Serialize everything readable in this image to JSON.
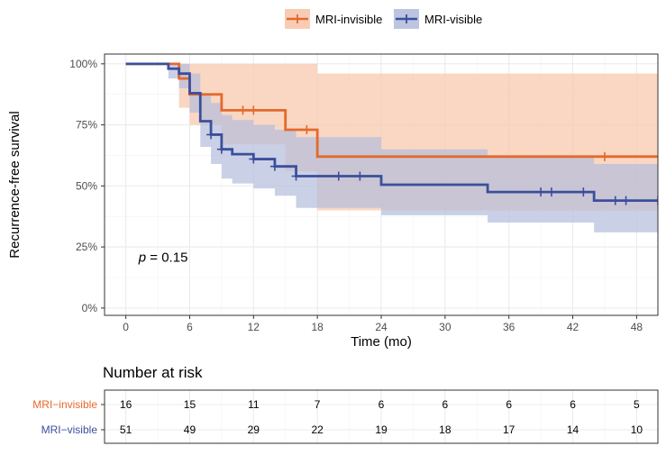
{
  "chart_data": {
    "type": "line",
    "subtype": "kaplan-meier",
    "xlabel": "Time (mo)",
    "ylabel": "Recurrence-free survival",
    "xlim": [
      -2,
      50
    ],
    "ylim": [
      -0.03,
      1.04
    ],
    "x_ticks": [
      0,
      6,
      12,
      18,
      24,
      30,
      36,
      42,
      48
    ],
    "y_ticks": [
      0,
      0.25,
      0.5,
      0.75,
      1.0
    ],
    "y_tick_labels": [
      "0%",
      "25%",
      "50%",
      "75%",
      "100%"
    ],
    "annotation": {
      "prefix": "p",
      "text": " = 0.15",
      "x": 1.2,
      "y": 0.19
    },
    "legend": {
      "position": "top",
      "items": [
        "MRI-invisible",
        "MRI-visible"
      ]
    },
    "series": [
      {
        "name": "MRI-invisible",
        "color": "#E4692B",
        "fill": "#F7C7AC",
        "steps": [
          [
            0,
            1.0
          ],
          [
            5,
            0.94
          ],
          [
            6,
            0.875
          ],
          [
            9,
            0.81
          ],
          [
            15,
            0.73
          ],
          [
            18,
            0.62
          ],
          [
            50,
            0.62
          ]
        ],
        "ci_steps": [
          [
            0,
            1.0,
            1.0
          ],
          [
            5,
            0.82,
            1.0
          ],
          [
            6,
            0.75,
            1.0
          ],
          [
            9,
            0.67,
            1.0
          ],
          [
            15,
            0.56,
            1.0
          ],
          [
            18,
            0.4,
            0.96
          ],
          [
            24,
            0.4,
            0.96
          ],
          [
            45,
            0.4,
            0.96
          ],
          [
            50,
            0.4,
            0.96
          ]
        ],
        "censor": [
          11,
          12,
          17,
          45
        ]
      },
      {
        "name": "MRI-visible",
        "color": "#3B4F9B",
        "fill": "#B5BEDD",
        "steps": [
          [
            0,
            1.0
          ],
          [
            4,
            0.98
          ],
          [
            5,
            0.96
          ],
          [
            6,
            0.88
          ],
          [
            7,
            0.765
          ],
          [
            8,
            0.71
          ],
          [
            9,
            0.65
          ],
          [
            10,
            0.63
          ],
          [
            12,
            0.61
          ],
          [
            14,
            0.58
          ],
          [
            16,
            0.54
          ],
          [
            24,
            0.505
          ],
          [
            34,
            0.475
          ],
          [
            44,
            0.44
          ],
          [
            50,
            0.44
          ]
        ],
        "ci_steps": [
          [
            0,
            1.0,
            1.0
          ],
          [
            4,
            0.94,
            1.0
          ],
          [
            5,
            0.9,
            1.0
          ],
          [
            6,
            0.8,
            0.96
          ],
          [
            7,
            0.66,
            0.88
          ],
          [
            8,
            0.59,
            0.84
          ],
          [
            9,
            0.53,
            0.79
          ],
          [
            10,
            0.51,
            0.77
          ],
          [
            12,
            0.49,
            0.75
          ],
          [
            14,
            0.46,
            0.73
          ],
          [
            16,
            0.41,
            0.7
          ],
          [
            24,
            0.38,
            0.65
          ],
          [
            34,
            0.35,
            0.62
          ],
          [
            44,
            0.31,
            0.59
          ],
          [
            50,
            0.31,
            0.59
          ]
        ],
        "censor": [
          8,
          9,
          12,
          14,
          16,
          20,
          22,
          39,
          40,
          43,
          46,
          47,
          50
        ]
      }
    ]
  },
  "risk_table": {
    "title": "Number at risk",
    "times": [
      0,
      6,
      12,
      18,
      24,
      30,
      36,
      42,
      48
    ],
    "rows": [
      {
        "label": "MRI−invisible",
        "color": "#E4692B",
        "values": [
          "16",
          "15",
          "11",
          "7",
          "6",
          "6",
          "6",
          "6",
          "5"
        ]
      },
      {
        "label": "MRI−visible",
        "color": "#3B4F9B",
        "values": [
          "51",
          "49",
          "29",
          "22",
          "19",
          "18",
          "17",
          "14",
          "10"
        ]
      }
    ]
  }
}
